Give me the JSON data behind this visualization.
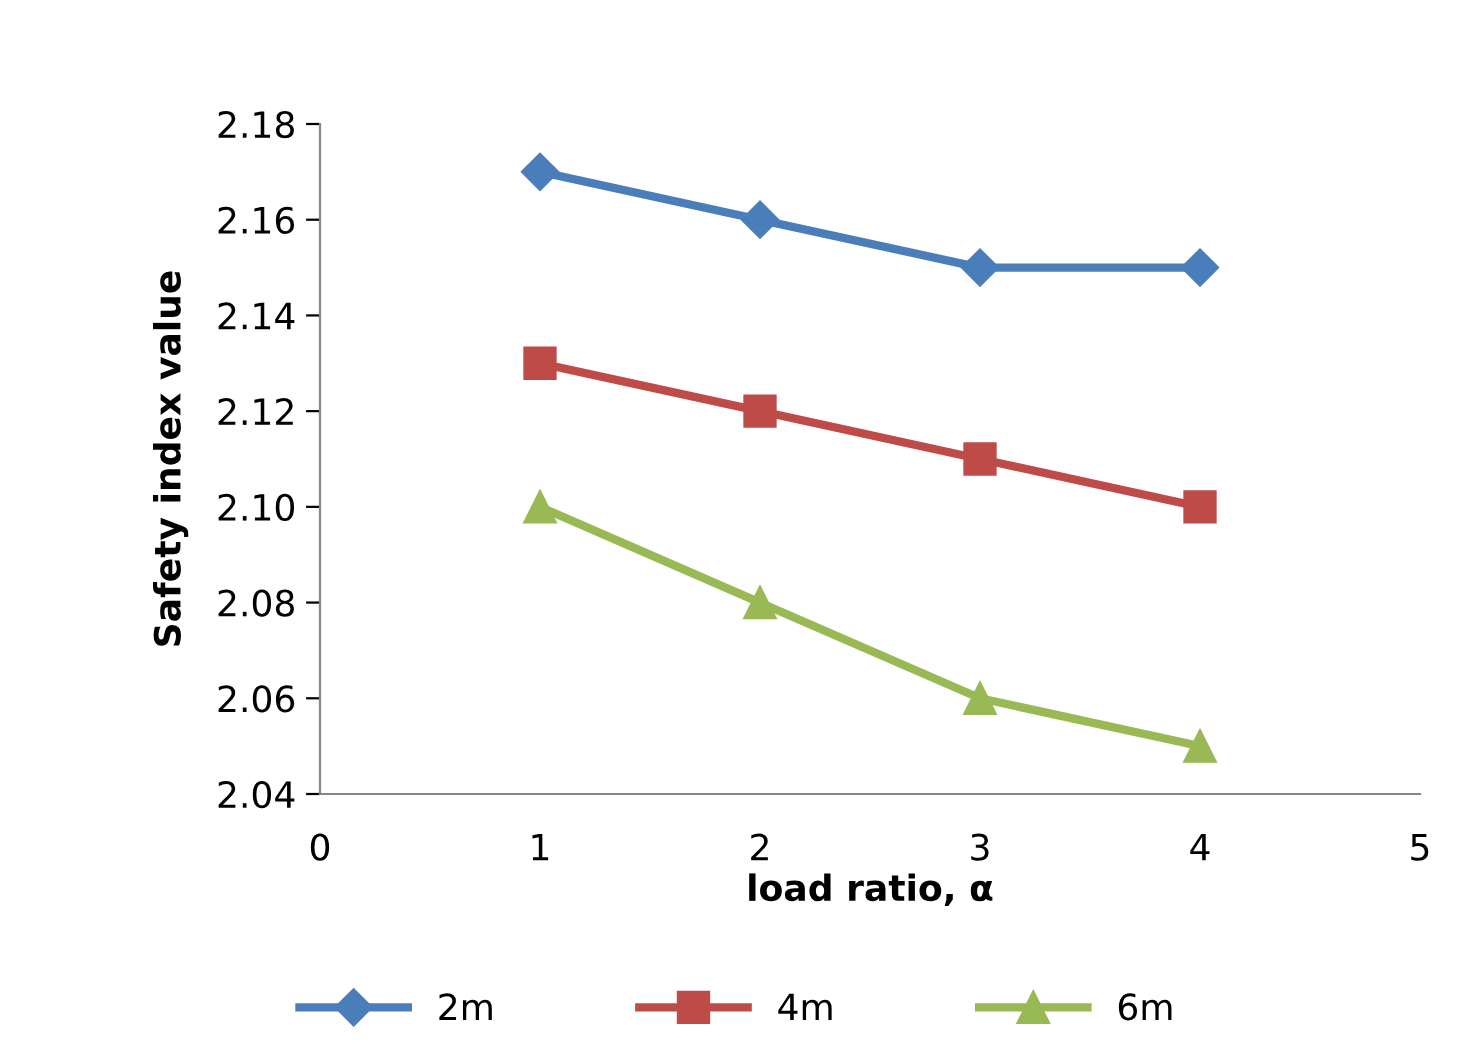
{
  "chart_data": {
    "type": "line",
    "xlabel": "load ratio, α",
    "ylabel": "Safety index value",
    "x": [
      1,
      2,
      3,
      4
    ],
    "series": [
      {
        "name": "2m",
        "color": "#4a7ebb",
        "marker": "diamond",
        "values": [
          2.17,
          2.16,
          2.15,
          2.15
        ]
      },
      {
        "name": "4m",
        "color": "#be4b48",
        "marker": "square",
        "values": [
          2.13,
          2.12,
          2.11,
          2.1
        ]
      },
      {
        "name": "6m",
        "color": "#98b954",
        "marker": "triangle",
        "values": [
          2.1,
          2.08,
          2.06,
          2.05
        ]
      }
    ],
    "xlim": [
      0,
      5
    ],
    "xticks": [
      0,
      1,
      2,
      3,
      4,
      5
    ],
    "ylim": [
      2.04,
      2.18
    ],
    "yticks": [
      2.04,
      2.06,
      2.08,
      {
        "value": 2.1,
        "label": "2.10"
      },
      2.12,
      2.14,
      2.16,
      2.18
    ],
    "grid": false,
    "legend": "bottom",
    "line_style": "solid"
  }
}
